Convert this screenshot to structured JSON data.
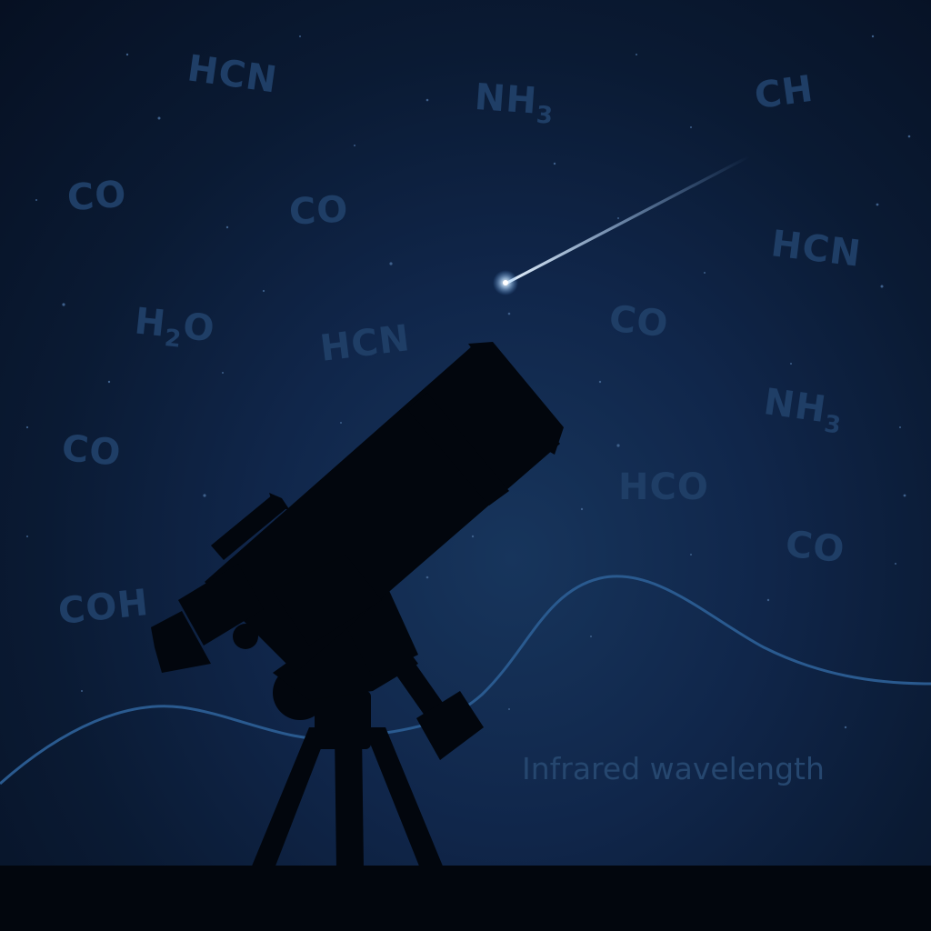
{
  "scene": {
    "description_colors": {
      "sky_top": "#07111f",
      "sky_mid": "#17355c",
      "molecule_text": "#1f3e66",
      "wave_line": "#2a5a8f",
      "silhouette": "#02060d",
      "meteor": "#e8f4ff"
    },
    "molecules": [
      {
        "base": "HCN",
        "sub": ""
      },
      {
        "base": "NH",
        "sub": "3"
      },
      {
        "base": "CH",
        "sub": ""
      },
      {
        "base": "CO",
        "sub": ""
      },
      {
        "base": "CO",
        "sub": ""
      },
      {
        "base": "HCN",
        "sub": ""
      },
      {
        "base": "H",
        "sub": "2",
        "tail": "O"
      },
      {
        "base": "HCN",
        "sub": ""
      },
      {
        "base": "CO",
        "sub": ""
      },
      {
        "base": "NH",
        "sub": "3"
      },
      {
        "base": "CO",
        "sub": ""
      },
      {
        "base": "HCO",
        "sub": ""
      },
      {
        "base": "CO",
        "sub": ""
      },
      {
        "base": "COH",
        "sub": ""
      }
    ],
    "caption": "Infrared wavelength"
  }
}
